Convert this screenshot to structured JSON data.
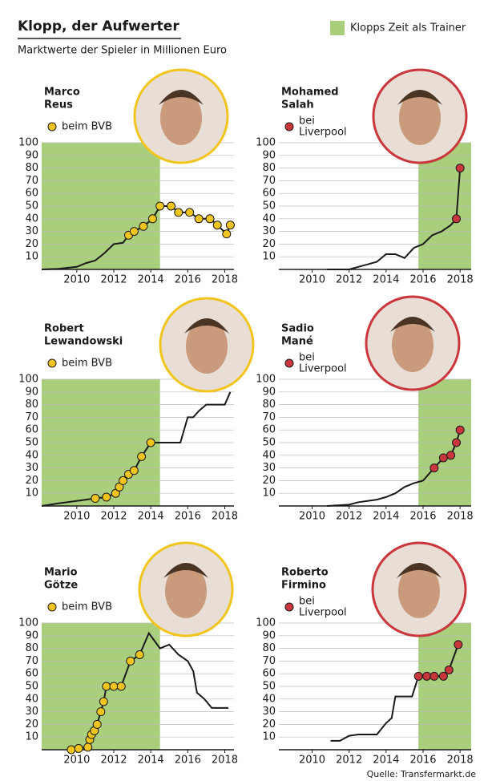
{
  "title": "Klopp, der Aufwerter",
  "subtitle": "Marktwerte der Spieler in Millionen Euro",
  "legend_label": "Klopps Zeit als Trainer",
  "highlight_color": "#a9cf7d",
  "source": "Quelle: Transfermarkt.de",
  "chart_data": [
    {
      "type": "line",
      "title": [
        "Marco",
        "Reus"
      ],
      "xlim": [
        2008.1,
        2018.5
      ],
      "ylim": [
        0,
        100
      ],
      "xticks": [
        2010,
        2012,
        2014,
        2016,
        2018
      ],
      "yticks": [
        10,
        20,
        30,
        40,
        50,
        60,
        70,
        80,
        90,
        100
      ],
      "highlight": [
        2008.1,
        2014.5
      ],
      "series": [
        {
          "color": "#1a1a1a",
          "x": [
            2008.1,
            2009,
            2010,
            2010.5,
            2011,
            2011.5,
            2012,
            2012.5,
            2012.8,
            2013.1,
            2013.6,
            2014.1,
            2014.5,
            2015.1,
            2015.5,
            2016.1,
            2016.6,
            2017.2,
            2017.6,
            2018.1,
            2018.3
          ],
          "values": [
            0,
            0.5,
            2,
            5,
            7,
            13,
            20,
            21,
            27,
            30,
            34,
            40,
            50,
            50,
            45,
            45,
            40,
            40,
            35,
            28,
            35
          ]
        },
        {
          "name": [
            "beim BVB"
          ],
          "color": "#f1c51d",
          "marker": true,
          "x": [
            2012.8,
            2013.1,
            2013.6,
            2014.1,
            2014.5,
            2015.1,
            2015.5,
            2016.1,
            2016.6,
            2017.2,
            2017.6,
            2018.1,
            2018.3
          ],
          "values": [
            27,
            30,
            34,
            40,
            50,
            50,
            45,
            45,
            40,
            40,
            35,
            28,
            35
          ]
        }
      ]
    },
    {
      "type": "line",
      "title": [
        "Mohamed",
        "Salah"
      ],
      "xlim": [
        2008.2,
        2018.6
      ],
      "ylim": [
        0,
        100
      ],
      "xticks": [
        2010,
        2012,
        2014,
        2016,
        2018
      ],
      "yticks": [
        10,
        20,
        30,
        40,
        50,
        60,
        70,
        80,
        90,
        100
      ],
      "highlight": [
        2015.75,
        2018.6
      ],
      "series": [
        {
          "color": "#1a1a1a",
          "x": [
            2010.8,
            2012,
            2012.5,
            2013,
            2013.5,
            2014,
            2014.5,
            2015,
            2015.5,
            2016,
            2016.5,
            2017,
            2017.5,
            2017.8,
            2018
          ],
          "values": [
            0,
            0,
            2,
            4,
            6,
            12,
            12,
            9,
            17,
            20,
            27,
            30,
            35,
            40,
            80
          ]
        },
        {
          "name": [
            "bei",
            "Liverpool"
          ],
          "color": "#c9363c",
          "marker": true,
          "x": [
            2017.8,
            2018
          ],
          "values": [
            40,
            80
          ]
        }
      ]
    },
    {
      "type": "line",
      "title": [
        "Robert",
        "Lewandowski"
      ],
      "xlim": [
        2008.1,
        2018.5
      ],
      "ylim": [
        0,
        100
      ],
      "xticks": [
        2010,
        2012,
        2014,
        2016,
        2018
      ],
      "yticks": [
        10,
        20,
        30,
        40,
        50,
        60,
        70,
        80,
        90,
        100
      ],
      "highlight": [
        2008.1,
        2014.5
      ],
      "series": [
        {
          "color": "#1a1a1a",
          "x": [
            2008.1,
            2009,
            2010,
            2010.5,
            2011,
            2011.6,
            2012.1,
            2012.3,
            2012.5,
            2012.8,
            2013.1,
            2013.5,
            2014,
            2014.5,
            2015.6,
            2016,
            2016.3,
            2016.6,
            2017,
            2018,
            2018.3
          ],
          "values": [
            0,
            2,
            4,
            5,
            6,
            7,
            10,
            15,
            20,
            25,
            28,
            39,
            50,
            50,
            50,
            70,
            70,
            75,
            80,
            80,
            90
          ]
        },
        {
          "name": [
            "beim BVB"
          ],
          "color": "#f1c51d",
          "marker": true,
          "x": [
            2011,
            2011.6,
            2012.1,
            2012.3,
            2012.5,
            2012.8,
            2013.1,
            2013.5,
            2014
          ],
          "values": [
            6,
            7,
            10,
            15,
            20,
            25,
            28,
            39,
            50
          ]
        }
      ]
    },
    {
      "type": "line",
      "title": [
        "Sadio",
        "Mané"
      ],
      "xlim": [
        2008.2,
        2018.6
      ],
      "ylim": [
        0,
        100
      ],
      "xticks": [
        2010,
        2012,
        2014,
        2016,
        2018
      ],
      "yticks": [
        10,
        20,
        30,
        40,
        50,
        60,
        70,
        80,
        90,
        100
      ],
      "highlight": [
        2015.75,
        2018.6
      ],
      "series": [
        {
          "color": "#1a1a1a",
          "x": [
            2010.8,
            2012,
            2012.5,
            2013,
            2013.5,
            2014,
            2014.5,
            2015,
            2015.5,
            2016,
            2016.3,
            2016.6,
            2017.1,
            2017.5,
            2017.8,
            2018
          ],
          "values": [
            0,
            1,
            3,
            4,
            5,
            7,
            10,
            15,
            18,
            20,
            25,
            30,
            38,
            40,
            50,
            60
          ]
        },
        {
          "name": [
            "bei",
            "Liverpool"
          ],
          "color": "#c9363c",
          "marker": true,
          "x": [
            2016.6,
            2017.1,
            2017.5,
            2017.8,
            2018
          ],
          "values": [
            30,
            38,
            40,
            50,
            60
          ]
        }
      ]
    },
    {
      "type": "line",
      "title": [
        "Mario",
        "Götze"
      ],
      "xlim": [
        2008.1,
        2018.5
      ],
      "ylim": [
        0,
        100
      ],
      "xticks": [
        2010,
        2012,
        2014,
        2016,
        2018
      ],
      "yticks": [
        10,
        20,
        30,
        40,
        50,
        60,
        70,
        80,
        90,
        100
      ],
      "highlight": [
        2008.1,
        2014.5
      ],
      "series": [
        {
          "color": "#1a1a1a",
          "x": [
            2009.7,
            2010.1,
            2010.6,
            2010.7,
            2010.8,
            2010.95,
            2011.1,
            2011.3,
            2011.45,
            2011.6,
            2012,
            2012.4,
            2012.9,
            2013.4,
            2013.9,
            2014.5,
            2015,
            2015.5,
            2016,
            2016.3,
            2016.5,
            2016.9,
            2017.3,
            2018.2
          ],
          "values": [
            0,
            1,
            2,
            8,
            12,
            15,
            20,
            30,
            38,
            50,
            50,
            50,
            70,
            75,
            92,
            80,
            83,
            75,
            70,
            62,
            45,
            40,
            33,
            33
          ]
        },
        {
          "name": [
            "beim BVB"
          ],
          "color": "#f1c51d",
          "marker": true,
          "x": [
            2009.7,
            2010.1,
            2010.6,
            2010.7,
            2010.8,
            2010.95,
            2011.1,
            2011.3,
            2011.45,
            2011.6,
            2012,
            2012.4,
            2012.9,
            2013.4
          ],
          "values": [
            0,
            1,
            2,
            8,
            12,
            15,
            20,
            30,
            38,
            50,
            50,
            50,
            70,
            75
          ]
        }
      ]
    },
    {
      "type": "line",
      "title": [
        "Roberto",
        "Firmino"
      ],
      "xlim": [
        2008.2,
        2018.6
      ],
      "ylim": [
        0,
        100
      ],
      "xticks": [
        2010,
        2012,
        2014,
        2016,
        2018
      ],
      "yticks": [
        10,
        20,
        30,
        40,
        50,
        60,
        70,
        80,
        90,
        100
      ],
      "highlight": [
        2015.75,
        2018.6
      ],
      "series": [
        {
          "color": "#1a1a1a",
          "x": [
            2011,
            2011.5,
            2012,
            2012.5,
            2013,
            2013.5,
            2014,
            2014.3,
            2014.5,
            2015.4,
            2015.75,
            2016.2,
            2016.6,
            2017.1,
            2017.4,
            2017.9
          ],
          "values": [
            7,
            7,
            11,
            12,
            12,
            12,
            21,
            25,
            42,
            42,
            58,
            58,
            58,
            58,
            63,
            83
          ]
        },
        {
          "name": [
            "bei",
            "Liverpool"
          ],
          "color": "#c9363c",
          "marker": true,
          "x": [
            2015.75,
            2016.2,
            2016.6,
            2017.1,
            2017.4,
            2017.9
          ],
          "values": [
            58,
            58,
            58,
            58,
            63,
            83
          ]
        }
      ]
    }
  ]
}
